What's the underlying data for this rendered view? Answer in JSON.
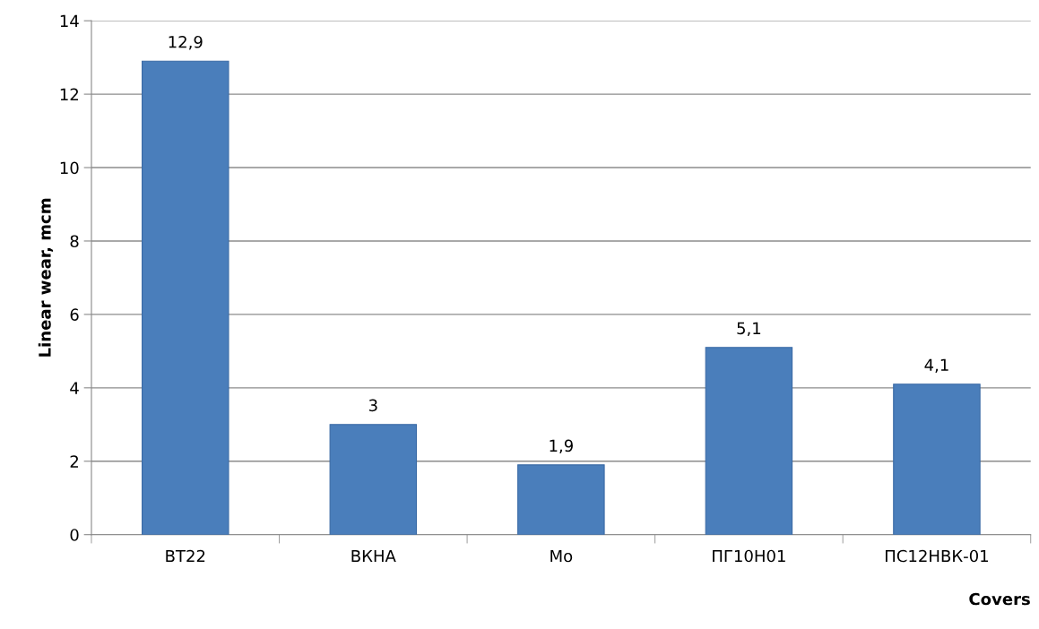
{
  "chart_data": {
    "type": "bar",
    "xlabel": "Covers",
    "ylabel": "Linear wear, mcm",
    "categories": [
      "ВТ22",
      "ВКНА",
      "Mo",
      "ПГ10Н01",
      "ПС12НВК-01"
    ],
    "values": [
      12.9,
      3,
      1.9,
      5.1,
      4.1
    ],
    "value_labels": [
      "12,9",
      "3",
      "1,9",
      "5,1",
      "4,1"
    ],
    "color": "#4a7ebb",
    "ylim": [
      0,
      14
    ],
    "yticks": [
      0,
      2,
      4,
      6,
      8,
      10,
      12,
      14
    ],
    "grid": "y"
  }
}
